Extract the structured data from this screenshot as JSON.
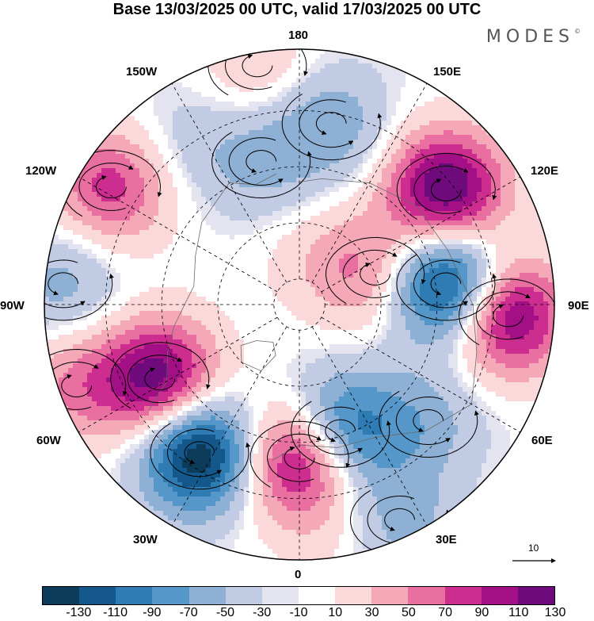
{
  "title": "Base 13/03/2025 00 UTC, valid 17/03/2025 00 UTC",
  "brand": "MODES",
  "brand_mark": "©",
  "longitude_labels": {
    "lon_180": "180",
    "lon_150w": "150W",
    "lon_150e": "150E",
    "lon_120w": "120W",
    "lon_120e": "120E",
    "lon_90w": "90W",
    "lon_90e": "90E",
    "lon_60w": "60W",
    "lon_60e": "60E",
    "lon_30w": "30W",
    "lon_30e": "30E",
    "lon_0": "0"
  },
  "reference_vector": {
    "label": "10"
  },
  "colorbar": {
    "colors": [
      "#0d3b5a",
      "#14578a",
      "#2f7bb3",
      "#5497c8",
      "#8fb0d5",
      "#c2cbe4",
      "#e4e3f0",
      "#ffffff",
      "#fbd9da",
      "#f5a9b8",
      "#ea6fa1",
      "#cc2d8e",
      "#a30f85",
      "#6e0a7c"
    ],
    "labels": [
      "-130",
      "-110",
      "-90",
      "-70",
      "-50",
      "-30",
      "-10",
      "10",
      "30",
      "50",
      "70",
      "90",
      "110",
      "130"
    ]
  },
  "anomaly_centers": [
    {
      "lon": 128,
      "colat": 0.73,
      "value": 135
    },
    {
      "lon": 112,
      "colat": 0.32,
      "value": 55
    },
    {
      "lon": 98,
      "colat": 0.58,
      "value": -140
    },
    {
      "lon": 87,
      "colat": 0.82,
      "value": 125
    },
    {
      "lon": 48,
      "colat": 0.68,
      "value": -35
    },
    {
      "lon": 18,
      "colat": 0.52,
      "value": -105
    },
    {
      "lon": 25,
      "colat": 0.93,
      "value": -40
    },
    {
      "lon": 8,
      "colat": 0.9,
      "value": 15
    },
    {
      "lon": 0,
      "colat": 0.6,
      "value": 130
    },
    {
      "lon": -34,
      "colat": 0.7,
      "value": -140
    },
    {
      "lon": -62,
      "colat": 0.62,
      "value": 125
    },
    {
      "lon": -70,
      "colat": 0.93,
      "value": 50
    },
    {
      "lon": -95,
      "colat": 0.93,
      "value": -40
    },
    {
      "lon": -122,
      "colat": 0.87,
      "value": 80
    },
    {
      "lon": -165,
      "colat": 0.58,
      "value": -35
    },
    {
      "lon": 170,
      "colat": 0.72,
      "value": -45
    },
    {
      "lon": -145,
      "colat": 0.78,
      "value": -20
    },
    {
      "lon": 160,
      "colat": 0.2,
      "value": 20
    },
    {
      "lon": -170,
      "colat": 0.95,
      "value": 30
    }
  ]
}
